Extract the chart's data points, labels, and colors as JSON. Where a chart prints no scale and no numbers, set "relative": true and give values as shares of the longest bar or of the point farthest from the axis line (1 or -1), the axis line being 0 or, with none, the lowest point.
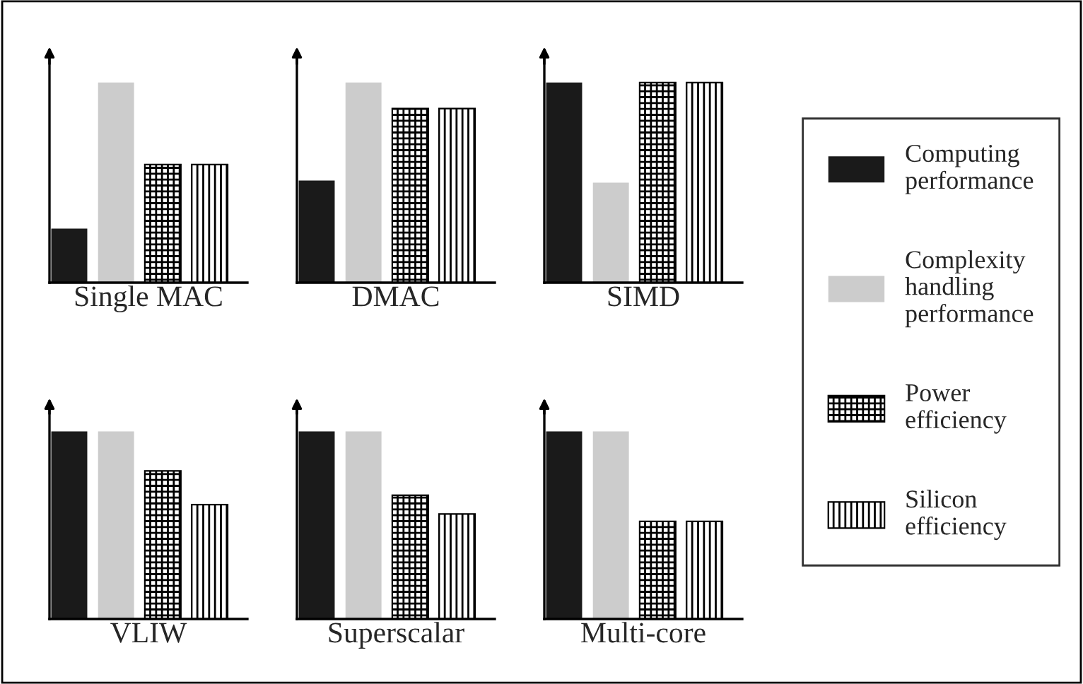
{
  "chart_data": [
    {
      "type": "bar",
      "relative": true,
      "xlabel": "Single MAC",
      "categories": [
        null
      ],
      "legend": "right",
      "series": [
        {
          "name": "Computing performance",
          "color": "#1a1a1a",
          "values": [
            0.27
          ]
        },
        {
          "name": "Complexity handling performance",
          "color": "#cccccc",
          "values": [
            1
          ]
        },
        {
          "name": "Power efficiency",
          "color": "#000000",
          "values": [
            0.59
          ]
        },
        {
          "name": "Silicon efficiency",
          "color": "#000000",
          "values": [
            0.59
          ]
        }
      ]
    },
    {
      "type": "bar",
      "relative": true,
      "xlabel": "DMAC",
      "categories": [
        null
      ],
      "series": [
        {
          "color": "#1a1a1a",
          "values": [
            0.51
          ]
        },
        {
          "color": "#cccccc",
          "values": [
            1
          ]
        },
        {
          "color": "#000000",
          "values": [
            0.87
          ]
        },
        {
          "color": "#000000",
          "values": [
            0.87
          ]
        }
      ]
    },
    {
      "type": "bar",
      "relative": true,
      "xlabel": "SIMD",
      "categories": [
        null
      ],
      "series": [
        {
          "color": "#1a1a1a",
          "values": [
            1
          ]
        },
        {
          "color": "#cccccc",
          "values": [
            0.5
          ]
        },
        {
          "color": "#000000",
          "values": [
            1
          ]
        },
        {
          "color": "#000000",
          "values": [
            1
          ]
        }
      ]
    },
    {
      "type": "bar",
      "relative": true,
      "xlabel": "VLIW",
      "categories": [
        null
      ],
      "series": [
        {
          "color": "#1a1a1a",
          "values": [
            1
          ]
        },
        {
          "color": "#cccccc",
          "values": [
            1
          ]
        },
        {
          "color": "#000000",
          "values": [
            0.79
          ]
        },
        {
          "color": "#000000",
          "values": [
            0.61
          ]
        }
      ]
    },
    {
      "type": "bar",
      "relative": true,
      "xlabel": "Superscalar",
      "categories": [
        null
      ],
      "series": [
        {
          "color": "#1a1a1a",
          "values": [
            1
          ]
        },
        {
          "color": "#cccccc",
          "values": [
            1
          ]
        },
        {
          "color": "#000000",
          "values": [
            0.66
          ]
        },
        {
          "color": "#000000",
          "values": [
            0.56
          ]
        }
      ]
    },
    {
      "type": "bar",
      "relative": true,
      "xlabel": "Multi-core",
      "categories": [
        null
      ],
      "series": [
        {
          "color": "#1a1a1a",
          "values": [
            1
          ]
        },
        {
          "color": "#cccccc",
          "values": [
            1
          ]
        },
        {
          "color": "#000000",
          "values": [
            0.52
          ]
        },
        {
          "color": "#000000",
          "values": [
            0.52
          ]
        }
      ]
    }
  ]
}
